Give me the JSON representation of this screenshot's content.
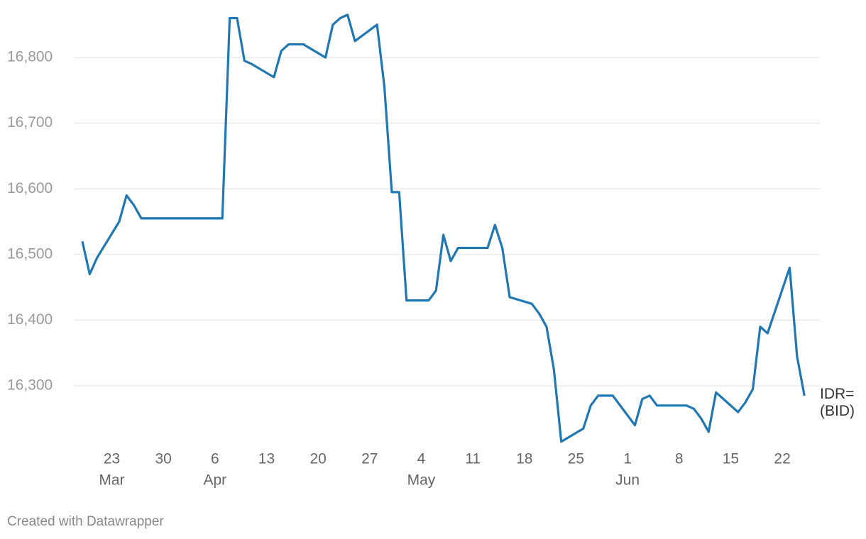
{
  "chart_data": {
    "type": "line",
    "source": "Created with Datawrapper",
    "x": [
      "Mar 19",
      "Mar 20",
      "Mar 21",
      "Mar 24",
      "Mar 25",
      "Mar 26",
      "Mar 27",
      "Mar 28",
      "Mar 31",
      "Apr 1",
      "Apr 2",
      "Apr 3",
      "Apr 4",
      "Apr 7",
      "Apr 8",
      "Apr 9",
      "Apr 10",
      "Apr 11",
      "Apr 14",
      "Apr 15",
      "Apr 16",
      "Apr 17",
      "Apr 18",
      "Apr 21",
      "Apr 22",
      "Apr 23",
      "Apr 24",
      "Apr 25",
      "Apr 28",
      "Apr 29",
      "Apr 30",
      "May 1",
      "May 2",
      "May 5",
      "May 6",
      "May 7",
      "May 8",
      "May 9",
      "May 12",
      "May 13",
      "May 14",
      "May 15",
      "May 16",
      "May 19",
      "May 20",
      "May 21",
      "May 22",
      "May 23",
      "May 26",
      "May 27",
      "May 28",
      "May 29",
      "May 30",
      "Jun 2",
      "Jun 3",
      "Jun 4",
      "Jun 5",
      "Jun 6",
      "Jun 9",
      "Jun 10",
      "Jun 11",
      "Jun 12",
      "Jun 13",
      "Jun 16",
      "Jun 17",
      "Jun 18",
      "Jun 19",
      "Jun 20",
      "Jun 23",
      "Jun 24",
      "Jun 25"
    ],
    "series": [
      {
        "name": "IDR= (BID)",
        "color": "#1f77b4",
        "values": [
          16520,
          16470,
          16495,
          16550,
          16590,
          16575,
          16555,
          16555,
          16555,
          16555,
          16555,
          16555,
          16555,
          16555,
          16860,
          16860,
          16795,
          16790,
          16770,
          16810,
          16820,
          16820,
          16820,
          16800,
          16850,
          16860,
          16865,
          16825,
          16850,
          16755,
          16595,
          16595,
          16430,
          16430,
          16445,
          16530,
          16490,
          16510,
          16510,
          16510,
          16545,
          16510,
          16435,
          16425,
          16410,
          16390,
          16325,
          16215,
          16235,
          16270,
          16285,
          16285,
          16285,
          16240,
          16280,
          16285,
          16270,
          16270,
          16270,
          16265,
          16250,
          16230,
          16290,
          16260,
          16275,
          16295,
          16390,
          16380,
          16480,
          16345,
          16285
        ]
      }
    ],
    "xlim": [
      "Mar 18",
      "Jun 26"
    ],
    "xticks": [
      {
        "value": "Mar 23",
        "label": "23",
        "month": "Mar"
      },
      {
        "value": "Mar 30",
        "label": "30"
      },
      {
        "value": "Apr 6",
        "label": "6",
        "month": "Apr"
      },
      {
        "value": "Apr 13",
        "label": "13"
      },
      {
        "value": "Apr 20",
        "label": "20"
      },
      {
        "value": "Apr 27",
        "label": "27"
      },
      {
        "value": "May 4",
        "label": "4",
        "month": "May"
      },
      {
        "value": "May 11",
        "label": "11"
      },
      {
        "value": "May 18",
        "label": "18"
      },
      {
        "value": "May 25",
        "label": "25"
      },
      {
        "value": "Jun 1",
        "label": "1",
        "month": "Jun"
      },
      {
        "value": "Jun 8",
        "label": "8"
      },
      {
        "value": "Jun 15",
        "label": "15"
      },
      {
        "value": "Jun 22",
        "label": "22"
      }
    ],
    "ylim": [
      16200,
      16880
    ],
    "yticks": [
      {
        "value": 16300,
        "label": "16,300"
      },
      {
        "value": 16400,
        "label": "16,400"
      },
      {
        "value": 16500,
        "label": "16,500"
      },
      {
        "value": 16600,
        "label": "16,600"
      },
      {
        "value": 16700,
        "label": "16,700"
      },
      {
        "value": 16800,
        "label": "16,800"
      }
    ],
    "grid": true
  }
}
